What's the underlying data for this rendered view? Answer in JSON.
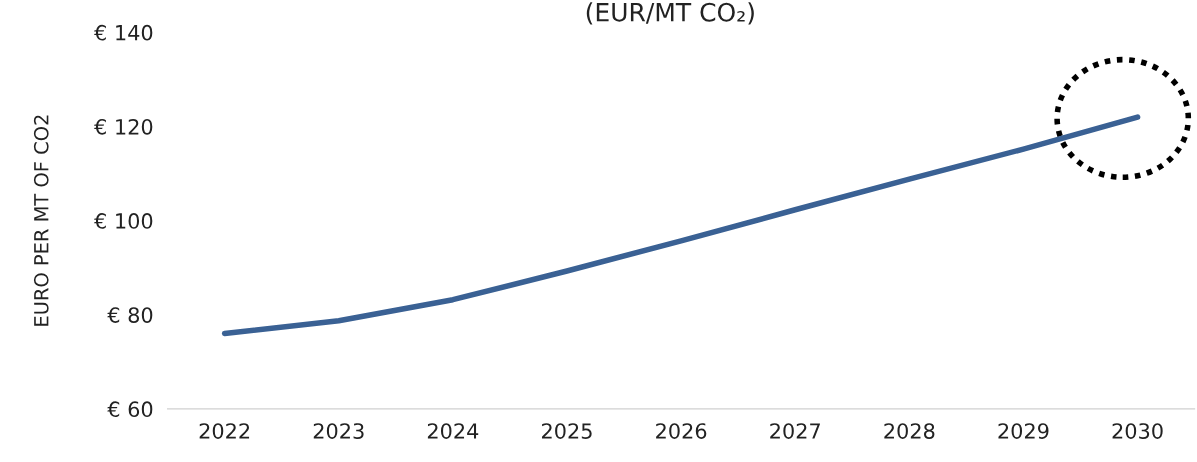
{
  "chart_data": {
    "type": "line",
    "title": "(EUR/MT CO₂)",
    "ylabel": "EURO PER MT OF CO2",
    "categories": [
      "2022",
      "2023",
      "2024",
      "2025",
      "2026",
      "2027",
      "2028",
      "2029",
      "2030"
    ],
    "series": [
      {
        "color": "#3a6194",
        "values": [
          76,
          78.7,
          83.2,
          89.3,
          95.7,
          102.3,
          108.8,
          115.2,
          122
        ]
      }
    ],
    "ylim": [
      60,
      140
    ],
    "yticks": [
      {
        "value": 60,
        "label": "€ 60"
      },
      {
        "value": 80,
        "label": "€ 80"
      },
      {
        "value": 100,
        "label": "€ 100"
      },
      {
        "value": 120,
        "label": "€ 120"
      },
      {
        "value": 140,
        "label": "€ 140"
      }
    ],
    "grid": false,
    "legend": false,
    "marker": "none",
    "line_style": "solid"
  }
}
